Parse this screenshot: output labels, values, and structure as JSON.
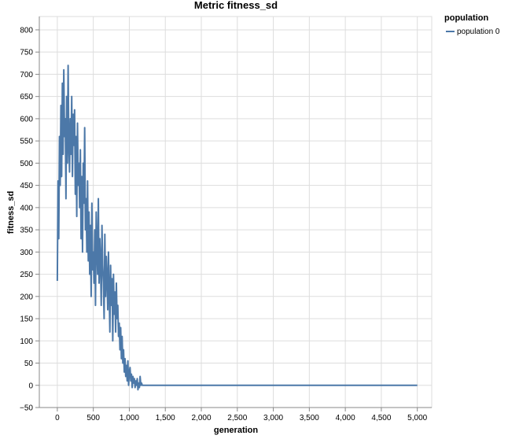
{
  "chart_data": {
    "type": "line",
    "title": "Metric fitness_sd",
    "xlabel": "generation",
    "ylabel": "fitness_sd",
    "xlim": [
      -250,
      5200
    ],
    "ylim": [
      -50,
      830
    ],
    "x_ticks": [
      0,
      500,
      1000,
      1500,
      2000,
      2500,
      3000,
      3500,
      4000,
      4500,
      5000
    ],
    "x_tick_labels": [
      "0",
      "500",
      "1,000",
      "1,500",
      "2,000",
      "2,500",
      "3,000",
      "3,500",
      "4,000",
      "4,500",
      "5,000"
    ],
    "y_ticks": [
      -50,
      0,
      50,
      100,
      150,
      200,
      250,
      300,
      350,
      400,
      450,
      500,
      550,
      600,
      650,
      700,
      750,
      800
    ],
    "y_tick_labels": [
      "−50",
      "0",
      "50",
      "100",
      "150",
      "200",
      "250",
      "300",
      "350",
      "400",
      "450",
      "500",
      "550",
      "600",
      "650",
      "700",
      "750",
      "800"
    ],
    "grid": true,
    "legend": {
      "title": "population",
      "placement": "top-right",
      "entries": [
        "population 0"
      ]
    },
    "color": "#4c78a8",
    "series": [
      {
        "name": "population 0",
        "x": [
          0,
          10,
          20,
          30,
          40,
          50,
          60,
          70,
          80,
          90,
          100,
          110,
          120,
          130,
          140,
          150,
          160,
          170,
          180,
          190,
          200,
          210,
          220,
          230,
          240,
          250,
          260,
          270,
          280,
          290,
          300,
          310,
          320,
          330,
          340,
          350,
          360,
          370,
          380,
          390,
          400,
          410,
          420,
          430,
          440,
          450,
          460,
          470,
          480,
          490,
          500,
          510,
          520,
          530,
          540,
          550,
          560,
          570,
          580,
          590,
          600,
          610,
          620,
          630,
          640,
          650,
          660,
          670,
          680,
          690,
          700,
          710,
          720,
          730,
          740,
          750,
          760,
          770,
          780,
          790,
          800,
          810,
          820,
          830,
          840,
          850,
          860,
          870,
          880,
          890,
          900,
          910,
          920,
          930,
          940,
          950,
          960,
          970,
          980,
          990,
          1000,
          1010,
          1020,
          1030,
          1040,
          1050,
          1060,
          1070,
          1080,
          1090,
          1100,
          1110,
          1120,
          1130,
          1140,
          1150,
          1160,
          1170,
          1180,
          1190,
          1200,
          1500,
          2000,
          2500,
          3000,
          3500,
          4000,
          4500,
          5000
        ],
        "values": [
          235,
          460,
          330,
          560,
          450,
          630,
          470,
          680,
          520,
          710,
          560,
          600,
          420,
          650,
          500,
          720,
          540,
          480,
          600,
          520,
          650,
          470,
          610,
          540,
          620,
          430,
          560,
          380,
          590,
          450,
          500,
          400,
          530,
          330,
          470,
          300,
          500,
          410,
          580,
          350,
          420,
          300,
          460,
          280,
          390,
          250,
          360,
          200,
          410,
          260,
          300,
          230,
          350,
          180,
          390,
          310,
          250,
          420,
          230,
          330,
          280,
          180,
          360,
          270,
          230,
          150,
          340,
          200,
          290,
          240,
          170,
          300,
          210,
          120,
          270,
          180,
          240,
          100,
          250,
          160,
          210,
          120,
          230,
          150,
          180,
          110,
          140,
          80,
          130,
          60,
          110,
          50,
          80,
          30,
          60,
          20,
          45,
          10,
          55,
          0,
          30,
          40,
          10,
          25,
          -5,
          20,
          5,
          15,
          -5,
          10,
          0,
          15,
          -10,
          5,
          -5,
          20,
          0,
          5,
          0,
          0,
          0,
          0,
          0,
          0,
          0,
          0,
          0,
          0,
          0
        ]
      }
    ]
  }
}
